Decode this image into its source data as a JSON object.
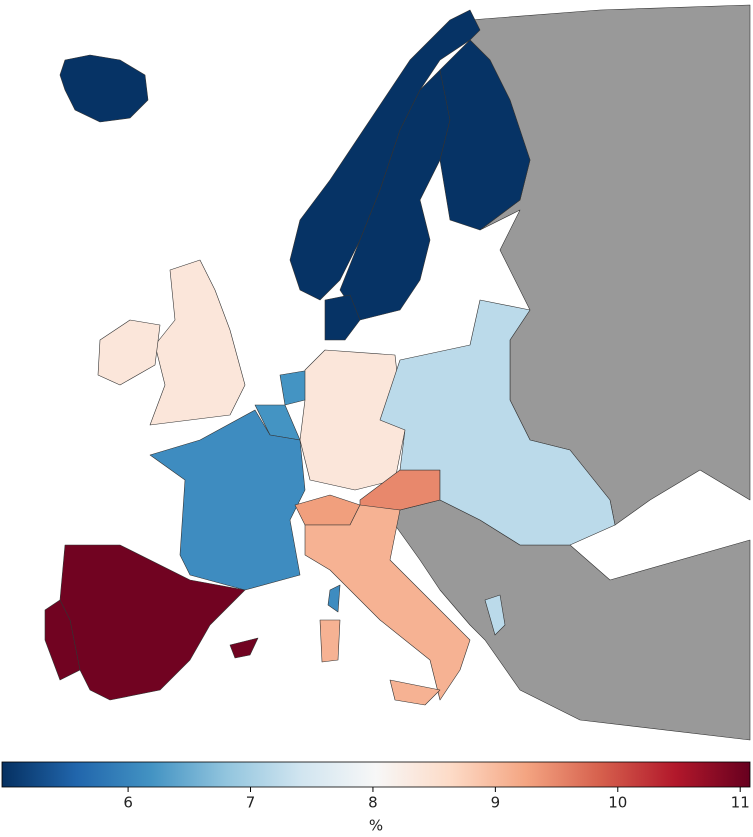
{
  "chart_data": {
    "type": "choropleth",
    "values": [
      5.0,
      5.0,
      5.0,
      5.0,
      5.0,
      8.4,
      8.4,
      6.2,
      6.2,
      6.1,
      6.1,
      11.0,
      11.0,
      11.0,
      8.4,
      9.3,
      9.5,
      9.1,
      9.1,
      9.1,
      7.2,
      7.2
    ],
    "colormap": [
      "#053061",
      "#2166ac",
      "#4393c3",
      "#92c5de",
      "#d1e5f0",
      "#f7f7f7",
      "#fddbc7",
      "#f4a582",
      "#d6604d",
      "#b2182b",
      "#67001f"
    ],
    "clim": [
      4.97,
      11.08
    ],
    "cticks": [
      6,
      7,
      8,
      9,
      10,
      11
    ],
    "colorbar_label": "%",
    "missing_color": "#999999"
  }
}
